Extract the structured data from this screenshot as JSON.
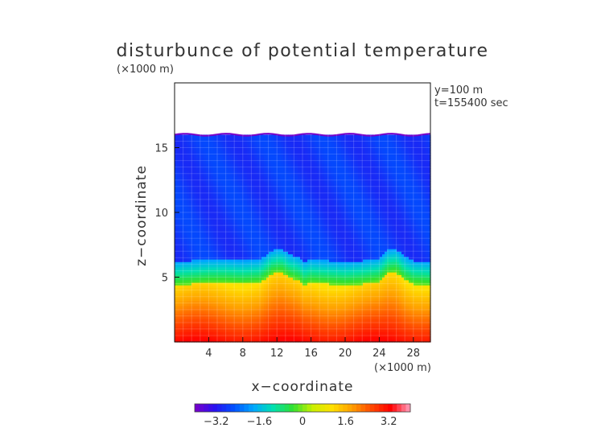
{
  "chart_data": {
    "type": "heatmap",
    "title": "disturbunce of potential temperature",
    "axis_multiplier_top": "(×1000 m)",
    "axis_multiplier_right": "(×1000 m)",
    "annotations": [
      "y=100 m",
      "t=155400 sec"
    ],
    "xlabel": "x−coordinate",
    "ylabel": "z−coordinate",
    "xlim": [
      0,
      30
    ],
    "ylim": [
      0,
      20
    ],
    "xticks": [
      4,
      8,
      12,
      16,
      20,
      24,
      28
    ],
    "yticks": [
      5,
      10,
      15
    ],
    "xtick_labels": [
      "4",
      "8",
      "12",
      "16",
      "20",
      "24",
      "28"
    ],
    "ytick_labels": [
      "5",
      "10",
      "15"
    ],
    "colorbar": {
      "range": [
        -4,
        4
      ],
      "ticks": [
        -3.2,
        -1.6,
        0,
        1.6,
        3.2
      ],
      "tick_labels": [
        "−3.2",
        "−1.6",
        "0",
        "1.6",
        "3.2"
      ],
      "colors": [
        "#7a00c8",
        "#2a10f0",
        "#0050ff",
        "#00a8ff",
        "#00e0b0",
        "#30e030",
        "#c8f000",
        "#ffe000",
        "#ffa000",
        "#ff4a00",
        "#ff0000",
        "#ffa0c0"
      ]
    },
    "field": {
      "domain_top_km": 16.0,
      "upper_layer_value": -2.8,
      "interface_profile": {
        "x": [
          0,
          2,
          4,
          6,
          8,
          10,
          11.5,
          12.5,
          13.5,
          14.5,
          15.2,
          16,
          18,
          20,
          22,
          24,
          25,
          26,
          27,
          28,
          30
        ],
        "z": [
          5.0,
          5.1,
          5.2,
          5.2,
          5.1,
          5.2,
          5.9,
          6.0,
          5.6,
          5.4,
          5.0,
          5.2,
          5.1,
          5.0,
          5.1,
          5.3,
          5.9,
          6.0,
          5.4,
          5.1,
          5.0
        ]
      },
      "lower_layer_top_value": 1.1,
      "lower_layer_bottom_value": 3.2
    }
  }
}
